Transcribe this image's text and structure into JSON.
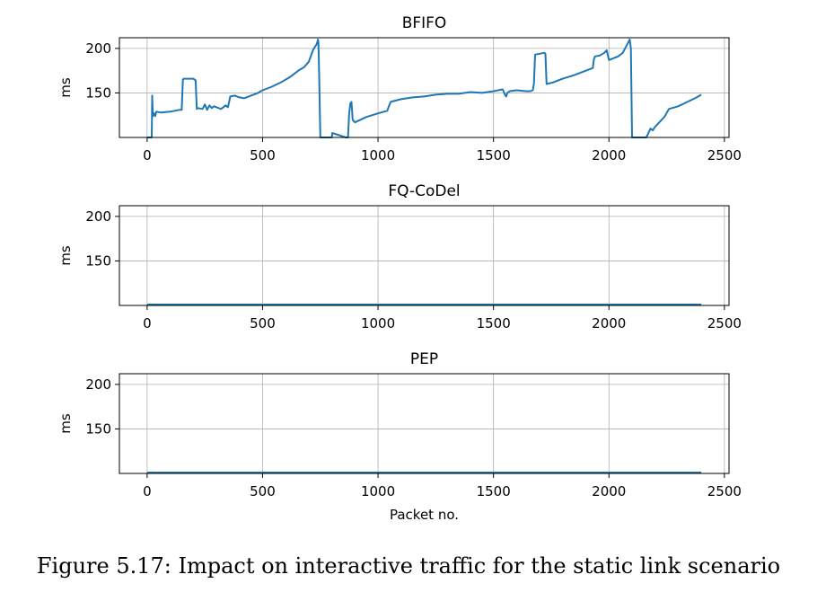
{
  "caption": "Figure 5.17: Impact on interactive traffic for the static link scenario",
  "chart_data": [
    {
      "type": "line",
      "title": "BFIFO",
      "xlabel": "",
      "ylabel": "ms",
      "xlim": [
        -120,
        2520
      ],
      "ylim": [
        100,
        212
      ],
      "xticks": [
        0,
        500,
        1000,
        1500,
        2000,
        2500
      ],
      "yticks": [
        150,
        200
      ],
      "grid": true,
      "color": "#1f77b4",
      "series": [
        {
          "x": [
            0,
            20,
            22,
            25,
            30,
            35,
            40,
            60,
            100,
            140,
            150,
            155,
            160,
            200,
            210,
            215,
            220,
            240,
            250,
            260,
            270,
            280,
            290,
            300,
            320,
            340,
            350,
            360,
            380,
            400,
            420,
            440,
            460,
            480,
            500,
            540,
            580,
            620,
            660,
            680,
            700,
            720,
            735,
            740,
            742,
            745,
            750,
            760,
            790,
            800,
            802,
            860,
            870,
            875,
            880,
            885,
            890,
            900,
            950,
            1000,
            1040,
            1050,
            1055,
            1100,
            1150,
            1200,
            1250,
            1300,
            1350,
            1400,
            1450,
            1500,
            1540,
            1550,
            1555,
            1560,
            1570,
            1600,
            1640,
            1660,
            1670,
            1675,
            1680,
            1720,
            1725,
            1730,
            1760,
            1800,
            1850,
            1900,
            1930,
            1935,
            1940,
            1960,
            1980,
            1990,
            2000,
            2040,
            2060,
            2080,
            2090,
            2095,
            2100,
            2110,
            2125,
            2130,
            2140,
            2160,
            2162,
            2180,
            2190,
            2200,
            2240,
            2260,
            2300,
            2340,
            2380,
            2400
          ],
          "values": [
            100,
            100,
            147,
            124,
            127,
            124,
            129,
            128,
            129,
            131,
            131,
            165,
            166,
            166,
            164,
            132,
            133,
            132,
            137,
            131,
            136,
            133,
            135,
            134,
            132,
            136,
            134,
            146,
            147,
            145,
            144,
            146,
            148,
            150,
            153,
            157,
            162,
            168,
            176,
            179,
            185,
            199,
            205,
            210,
            206,
            170,
            100,
            100,
            100,
            100,
            105,
            100,
            100,
            127,
            138,
            140,
            120,
            117,
            123,
            127,
            130,
            137,
            140,
            143,
            145,
            146,
            148,
            149,
            149,
            151,
            150,
            152,
            154,
            148,
            146,
            150,
            152,
            153,
            152,
            152,
            153,
            160,
            193,
            195,
            194,
            160,
            162,
            166,
            170,
            175,
            178,
            188,
            191,
            192,
            195,
            198,
            187,
            191,
            195,
            205,
            210,
            200,
            100,
            100,
            100,
            100,
            100,
            100,
            100,
            110,
            108,
            112,
            123,
            132,
            135,
            140,
            145,
            148
          ]
        }
      ]
    },
    {
      "type": "line",
      "title": "FQ-CoDel",
      "xlabel": "",
      "ylabel": "ms",
      "xlim": [
        -120,
        2520
      ],
      "ylim": [
        100,
        212
      ],
      "xticks": [
        0,
        500,
        1000,
        1500,
        2000,
        2500
      ],
      "yticks": [
        150,
        200
      ],
      "grid": true,
      "color": "#1f77b4",
      "series": [
        {
          "x": [
            0,
            2400
          ],
          "values": [
            101,
            101
          ]
        }
      ]
    },
    {
      "type": "line",
      "title": "PEP",
      "xlabel": "Packet no.",
      "ylabel": "ms",
      "xlim": [
        -120,
        2520
      ],
      "ylim": [
        100,
        212
      ],
      "xticks": [
        0,
        500,
        1000,
        1500,
        2000,
        2500
      ],
      "yticks": [
        150,
        200
      ],
      "grid": true,
      "color": "#1f77b4",
      "series": [
        {
          "x": [
            0,
            2400
          ],
          "values": [
            101,
            101
          ]
        }
      ]
    }
  ]
}
